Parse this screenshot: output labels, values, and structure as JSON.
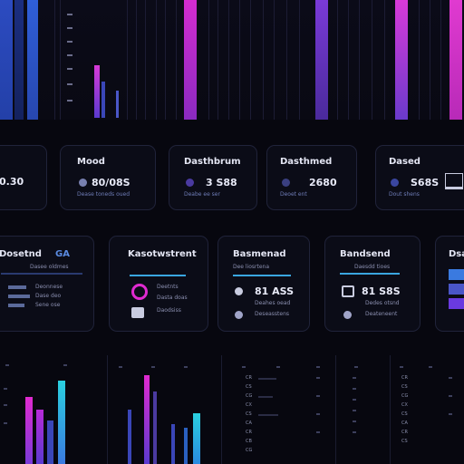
{
  "kpi_cards": [
    {
      "title": "",
      "value": "0.30",
      "subtitle": ""
    },
    {
      "title": "Mood",
      "value": "80/08S",
      "subtitle": "Dease toneds oued"
    },
    {
      "title": "Dasthbrum",
      "value": "3 S88",
      "subtitle": "Deabe ee ser"
    },
    {
      "title": "Dasthmed",
      "value": "2680",
      "subtitle": "Deoet ent"
    },
    {
      "title": "Dased",
      "value": "S68S",
      "subtitle": "Dout shens"
    }
  ],
  "middle_cards": [
    {
      "title": "Dosetnd",
      "badge": "GA",
      "subtitle": "Dasee oldmes",
      "rows": [
        "Deonnese",
        "Dase deo",
        "Sene ose"
      ]
    },
    {
      "title": "Kasotwstrent",
      "rows": [
        "Deetnts",
        "Dasta doas",
        "Daodsiss"
      ]
    },
    {
      "title": "Basmenad",
      "subtitle": "Dee liosrtena",
      "value": "81 ASS",
      "rows": [
        "Deahes oead",
        "Deseasstens"
      ]
    },
    {
      "title": "Bandsend",
      "subtitle": "Daesdd tioes",
      "value": "81 S8S",
      "rows": [
        "Dedes otsnd",
        "Deateneent"
      ]
    },
    {
      "title": "Dsa"
    }
  ],
  "bottom_list_rows": [
    "CR",
    "CS",
    "CG",
    "CX",
    "CS",
    "CA",
    "CR",
    "CB",
    "CG",
    "CS"
  ],
  "colors": {
    "accent_pink": "#e02ad0",
    "accent_blue": "#3aa6e0",
    "accent_violet": "#6a3ce0",
    "background": "#07070f"
  }
}
